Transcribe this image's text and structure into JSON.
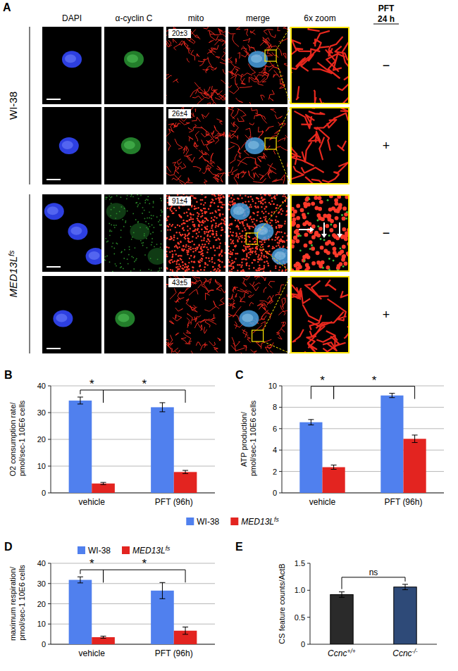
{
  "panel_a": {
    "label": "A",
    "columns": [
      "DAPI",
      "α-cyclin C",
      "mito",
      "merge",
      "6x zoom"
    ],
    "treatment": [
      "PFT",
      "24 h"
    ],
    "groups": [
      {
        "name": "WI-38",
        "rows": [
          {
            "pft": "−",
            "mito_count": "20±3"
          },
          {
            "pft": "+",
            "mito_count": "26±4"
          }
        ]
      },
      {
        "name": "MED13Lfs",
        "rows": [
          {
            "pft": "−",
            "mito_count": "91±4"
          },
          {
            "pft": "+",
            "mito_count": "43±5"
          }
        ]
      }
    ]
  },
  "chart_data": [
    {
      "type": "bar",
      "title": "B",
      "ylabel": "O2 consumption rate/ pmol/sec-1 10E6 cells",
      "categories": [
        "vehicle",
        "PFT (96h)"
      ],
      "series": [
        {
          "name": "WI-38",
          "color": "#5080ee",
          "values": [
            34.5,
            32
          ],
          "errors": [
            1.3,
            1.7
          ]
        },
        {
          "name": "MED13Lfs",
          "color": "#e32420",
          "values": [
            3.5,
            7.8
          ],
          "errors": [
            0.4,
            0.6
          ]
        }
      ],
      "ylim": [
        0,
        40
      ],
      "yticks": [
        0,
        10,
        20,
        30,
        40
      ],
      "grid": true,
      "legend": "bottom",
      "annotations": [
        {
          "text": "*",
          "from": [
            0,
            0
          ],
          "to": [
            1,
            0
          ]
        },
        {
          "text": "*",
          "from": [
            1,
            0
          ],
          "to": [
            1,
            1
          ]
        }
      ]
    },
    {
      "type": "bar",
      "title": "C",
      "ylabel": "ATP production/ pmol/sec-1 10E6 cells",
      "categories": [
        "vehicle",
        "PFT (96h)"
      ],
      "series": [
        {
          "color": "#5080ee",
          "values": [
            6.6,
            9.1
          ],
          "errors": [
            0.25,
            0.2
          ]
        },
        {
          "color": "#e32420",
          "values": [
            2.4,
            5.05
          ],
          "errors": [
            0.2,
            0.35
          ]
        }
      ],
      "ylim": [
        0,
        10
      ],
      "yticks": [
        0,
        2,
        4,
        6,
        8,
        10
      ],
      "grid": true,
      "annotations": [
        {
          "text": "*",
          "from": [
            0,
            0
          ],
          "to": [
            1,
            0
          ]
        },
        {
          "text": "*",
          "from": [
            1,
            0
          ],
          "to": [
            1,
            1
          ]
        }
      ]
    },
    {
      "type": "bar",
      "title": "D",
      "ylabel": "maximum respiration/ pmol/sec-1 10E6 cells",
      "categories": [
        "vehicle",
        "PFT (96h)"
      ],
      "series": [
        {
          "name": "WI-38",
          "color": "#5080ee",
          "values": [
            31.8,
            26.5
          ],
          "errors": [
            1.5,
            4
          ]
        },
        {
          "name": "MED13Lfs",
          "color": "#e32420",
          "values": [
            3.5,
            6.7
          ],
          "errors": [
            0.5,
            1.8
          ]
        }
      ],
      "ylim": [
        0,
        40
      ],
      "yticks": [
        0,
        10,
        20,
        30,
        40
      ],
      "grid": true,
      "legend": "top",
      "annotations": [
        {
          "text": "*",
          "from": [
            0,
            0
          ],
          "to": [
            1,
            0
          ]
        },
        {
          "text": "*",
          "from": [
            1,
            0
          ],
          "to": [
            1,
            1
          ]
        }
      ]
    },
    {
      "type": "bar",
      "title": "E",
      "ylabel": "CS feature counts/ActB",
      "categories": [
        "Ccnc+/+",
        "Ccnc-/-"
      ],
      "values": [
        0.92,
        1.06
      ],
      "errors": [
        0.05,
        0.05
      ],
      "colors": [
        "#2a2a2a",
        "#2e4a78"
      ],
      "ylim": [
        0,
        1.5
      ],
      "yticks": [
        0,
        0.5,
        {
          "value": 1,
          "label": "1.0"
        },
        1.5
      ],
      "grid": false,
      "annotations": [
        {
          "text": "ns",
          "from": 0,
          "to": 1
        }
      ]
    }
  ]
}
